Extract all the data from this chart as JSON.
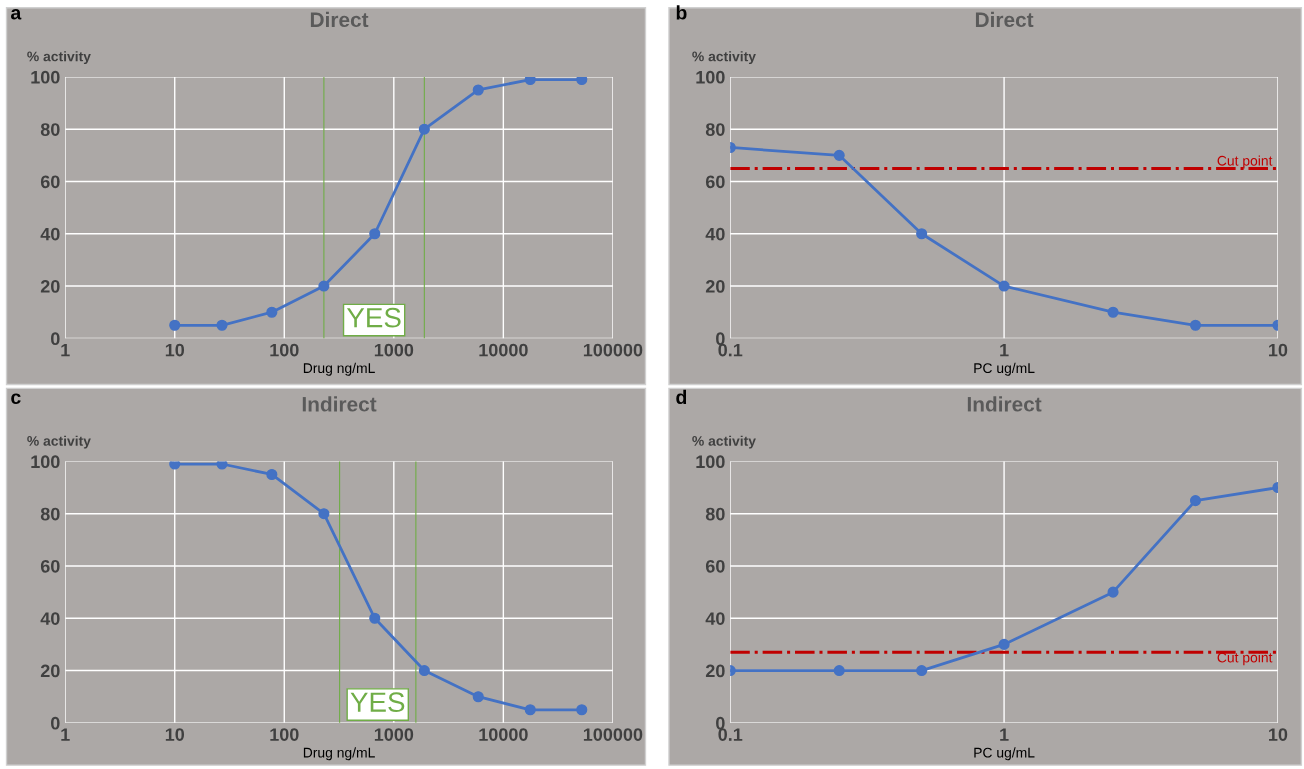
{
  "chart_data": [
    {
      "type": "line",
      "title": "Direct",
      "ylabel": "% activity",
      "xlabel": "Drug ng/mL",
      "annotations": [
        "a",
        "YES"
      ],
      "log": "x",
      "grid": true,
      "marker": "circle",
      "line_style": "solid",
      "x": [
        10,
        27,
        77,
        230,
        670,
        1900,
        5900,
        17600,
        52000
      ],
      "series": [
        {
          "color": "#4472c4",
          "values": [
            5,
            5,
            10,
            20,
            40,
            80,
            95,
            99,
            99
          ]
        }
      ],
      "xlim": [
        1,
        100000
      ],
      "xticks": [
        1,
        10,
        100,
        1000,
        10000,
        100000
      ],
      "ylim": [
        0,
        100
      ],
      "yticks": [
        0,
        20,
        40,
        60,
        80,
        100
      ],
      "ref_lines": [
        {
          "axis": "x",
          "value": 230,
          "color": "#70ad47",
          "line_style": "solid"
        },
        {
          "axis": "x",
          "value": 1900,
          "color": "#70ad47",
          "line_style": "solid"
        }
      ]
    },
    {
      "type": "line",
      "title": "Direct",
      "ylabel": "% activity",
      "xlabel": "PC ug/mL",
      "annotations": [
        "b"
      ],
      "log": "x",
      "grid": true,
      "marker": "circle",
      "line_style": "solid",
      "x": [
        0.1,
        0.25,
        0.5,
        1,
        2.5,
        5,
        10
      ],
      "series": [
        {
          "color": "#4472c4",
          "values": [
            73,
            70,
            40,
            20,
            10,
            5,
            5
          ]
        }
      ],
      "xlim": [
        0.1,
        10
      ],
      "xticks": [
        0.1,
        1,
        10
      ],
      "ylim": [
        0,
        100
      ],
      "yticks": [
        0,
        20,
        40,
        60,
        80,
        100
      ],
      "ref_lines": [
        {
          "axis": "y",
          "value": 65,
          "label": "Cut point",
          "color": "#c00000",
          "line_style": "dashdot"
        }
      ]
    },
    {
      "type": "line",
      "title": "Indirect",
      "ylabel": "% activity",
      "xlabel": "Drug ng/mL",
      "annotations": [
        "c",
        "YES"
      ],
      "log": "x",
      "grid": true,
      "marker": "circle",
      "line_style": "solid",
      "x": [
        10,
        27,
        77,
        230,
        670,
        1900,
        5900,
        17600,
        52000
      ],
      "series": [
        {
          "color": "#4472c4",
          "values": [
            99,
            99,
            95,
            80,
            40,
            20,
            10,
            5,
            5
          ]
        }
      ],
      "xlim": [
        1,
        100000
      ],
      "xticks": [
        1,
        10,
        100,
        1000,
        10000,
        100000
      ],
      "ylim": [
        0,
        100
      ],
      "yticks": [
        0,
        20,
        40,
        60,
        80,
        100
      ],
      "ref_lines": [
        {
          "axis": "x",
          "value": 320,
          "color": "#70ad47",
          "line_style": "solid"
        },
        {
          "axis": "x",
          "value": 1590,
          "color": "#70ad47",
          "line_style": "solid"
        }
      ]
    },
    {
      "type": "line",
      "title": "Indirect",
      "ylabel": "% activity",
      "xlabel": "PC ug/mL",
      "annotations": [
        "d"
      ],
      "log": "x",
      "grid": true,
      "marker": "circle",
      "line_style": "solid",
      "x": [
        0.1,
        0.25,
        0.5,
        1,
        2.5,
        5,
        10
      ],
      "series": [
        {
          "color": "#4472c4",
          "values": [
            20,
            20,
            20,
            30,
            50,
            85,
            90
          ]
        }
      ],
      "xlim": [
        0.1,
        10
      ],
      "xticks": [
        0.1,
        1,
        10
      ],
      "ylim": [
        0,
        100
      ],
      "yticks": [
        0,
        20,
        40,
        60,
        80,
        100
      ],
      "ref_lines": [
        {
          "axis": "y",
          "value": 27,
          "label": "Cut point",
          "color": "#c00000",
          "line_style": "dashdot"
        }
      ]
    }
  ]
}
